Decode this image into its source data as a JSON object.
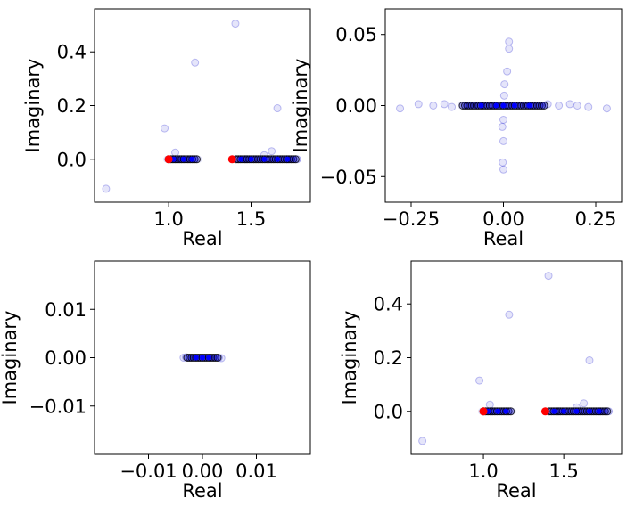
{
  "chart_data": [
    {
      "type": "scatter",
      "xlabel": "Real",
      "ylabel": "Imaginary",
      "xlim": [
        0.55,
        1.86
      ],
      "ylim": [
        -0.16,
        0.56
      ],
      "xticks": [
        1.0,
        1.5
      ],
      "xtick_labels": [
        "1.0",
        "1.5"
      ],
      "yticks": [
        0.0,
        0.2,
        0.4
      ],
      "ytick_labels": [
        "0.0",
        "0.2",
        "0.4"
      ],
      "series": [
        {
          "points": [
            [
              0.62,
              -0.11
            ],
            [
              0.975,
              0.115
            ],
            [
              1.04,
              0.025
            ],
            [
              1.16,
              0.36
            ],
            [
              1.405,
              0.505
            ],
            [
              1.625,
              0.03
            ],
            [
              1.66,
              0.19
            ],
            [
              1.72,
              0.0
            ],
            [
              1.78,
              0.0
            ],
            [
              1.05,
              0.0
            ],
            [
              1.47,
              0.0
            ],
            [
              1.58,
              0.015
            ]
          ]
        }
      ],
      "clusters": [
        {
          "x_range": [
            1.0,
            1.17
          ],
          "y": 0.0
        },
        {
          "x_range": [
            1.41,
            1.77
          ],
          "y": 0.0
        }
      ],
      "markers": {
        "red": [
          [
            1.0,
            0.0
          ],
          [
            1.385,
            0.0
          ]
        ],
        "blue": [
          [
            1.03,
            0.0
          ],
          [
            1.09,
            0.0
          ],
          [
            1.14,
            0.0
          ],
          [
            1.44,
            0.0
          ],
          [
            1.5,
            0.0
          ],
          [
            1.58,
            0.0
          ],
          [
            1.66,
            0.0
          ],
          [
            1.72,
            0.0
          ]
        ]
      }
    },
    {
      "type": "scatter",
      "xlabel": "Real",
      "ylabel": "Imaginary",
      "xlim": [
        -0.32,
        0.32
      ],
      "ylim": [
        -0.068,
        0.068
      ],
      "xticks": [
        -0.25,
        0.0,
        0.25
      ],
      "xtick_labels": [
        "−0.25",
        "0.00",
        "0.25"
      ],
      "yticks": [
        -0.05,
        0.0,
        0.05
      ],
      "ytick_labels": [
        "−0.05",
        "0.00",
        "0.05"
      ],
      "series": [
        {
          "points": [
            [
              -0.28,
              -0.002
            ],
            [
              -0.23,
              0.001
            ],
            [
              -0.19,
              0.0
            ],
            [
              -0.16,
              0.001
            ],
            [
              -0.14,
              -0.001
            ],
            [
              0.12,
              0.001
            ],
            [
              0.15,
              0.0
            ],
            [
              0.18,
              0.001
            ],
            [
              0.2,
              0.0
            ],
            [
              0.23,
              -0.001
            ],
            [
              0.28,
              -0.002
            ],
            [
              0.0,
              -0.045
            ],
            [
              -0.002,
              -0.04
            ],
            [
              0.0,
              -0.025
            ],
            [
              -0.003,
              -0.015
            ],
            [
              0.0,
              -0.01
            ],
            [
              0.002,
              0.007
            ],
            [
              0.003,
              0.015
            ],
            [
              0.01,
              0.024
            ],
            [
              0.015,
              0.04
            ],
            [
              0.015,
              0.045
            ]
          ]
        }
      ],
      "clusters": [
        {
          "x_range": [
            -0.11,
            0.11
          ],
          "y": 0.0
        }
      ],
      "markers": {
        "red": [],
        "blue": [
          [
            -0.06,
            0.0
          ],
          [
            -0.02,
            0.0
          ],
          [
            0.0,
            0.0
          ],
          [
            0.03,
            0.0
          ],
          [
            0.07,
            0.0
          ]
        ]
      }
    },
    {
      "type": "scatter",
      "xlabel": "Real",
      "ylabel": "Imaginary",
      "xlim": [
        -0.02,
        0.02
      ],
      "ylim": [
        -0.02,
        0.02
      ],
      "xticks": [
        -0.01,
        0.0,
        0.01
      ],
      "xtick_labels": [
        "−0.01",
        "0.00",
        "0.01"
      ],
      "yticks": [
        -0.01,
        0.0,
        0.01
      ],
      "ytick_labels": [
        "−0.01",
        "0.00",
        "0.01"
      ],
      "series": [
        {
          "points": [
            [
              -0.0035,
              0.0
            ],
            [
              -0.003,
              0.0001
            ],
            [
              0.003,
              0.0
            ],
            [
              0.0035,
              -0.0001
            ]
          ]
        }
      ],
      "clusters": [
        {
          "x_range": [
            -0.0028,
            0.0028
          ],
          "y": 0.0
        }
      ],
      "markers": {
        "red": [],
        "blue": [
          [
            0.0,
            0.0
          ],
          [
            -0.0012,
            0.0
          ],
          [
            0.0012,
            0.0
          ]
        ]
      }
    },
    {
      "type": "scatter",
      "xlabel": "Real",
      "ylabel": "Imaginary",
      "xlim": [
        0.55,
        1.86
      ],
      "ylim": [
        -0.16,
        0.56
      ],
      "xticks": [
        1.0,
        1.5
      ],
      "xtick_labels": [
        "1.0",
        "1.5"
      ],
      "yticks": [
        0.0,
        0.2,
        0.4
      ],
      "ytick_labels": [
        "0.0",
        "0.2",
        "0.4"
      ],
      "series": [
        {
          "points": [
            [
              0.62,
              -0.11
            ],
            [
              0.975,
              0.115
            ],
            [
              1.04,
              0.025
            ],
            [
              1.16,
              0.36
            ],
            [
              1.405,
              0.505
            ],
            [
              1.625,
              0.03
            ],
            [
              1.66,
              0.19
            ],
            [
              1.72,
              0.0
            ],
            [
              1.78,
              0.0
            ],
            [
              1.05,
              0.0
            ],
            [
              1.47,
              0.0
            ],
            [
              1.58,
              0.015
            ]
          ]
        }
      ],
      "clusters": [
        {
          "x_range": [
            1.0,
            1.17
          ],
          "y": 0.0
        },
        {
          "x_range": [
            1.41,
            1.77
          ],
          "y": 0.0
        }
      ],
      "markers": {
        "red": [
          [
            1.0,
            0.0
          ],
          [
            1.385,
            0.0
          ]
        ],
        "blue": [
          [
            1.03,
            0.0
          ],
          [
            1.09,
            0.0
          ],
          [
            1.14,
            0.0
          ],
          [
            1.44,
            0.0
          ],
          [
            1.5,
            0.0
          ],
          [
            1.58,
            0.0
          ],
          [
            1.66,
            0.0
          ],
          [
            1.72,
            0.0
          ]
        ]
      }
    }
  ],
  "colors": {
    "scatter": "#0000cc",
    "cluster_edge": "#000000",
    "red_marker": "#ff0000",
    "blue_marker": "#0000ff"
  }
}
